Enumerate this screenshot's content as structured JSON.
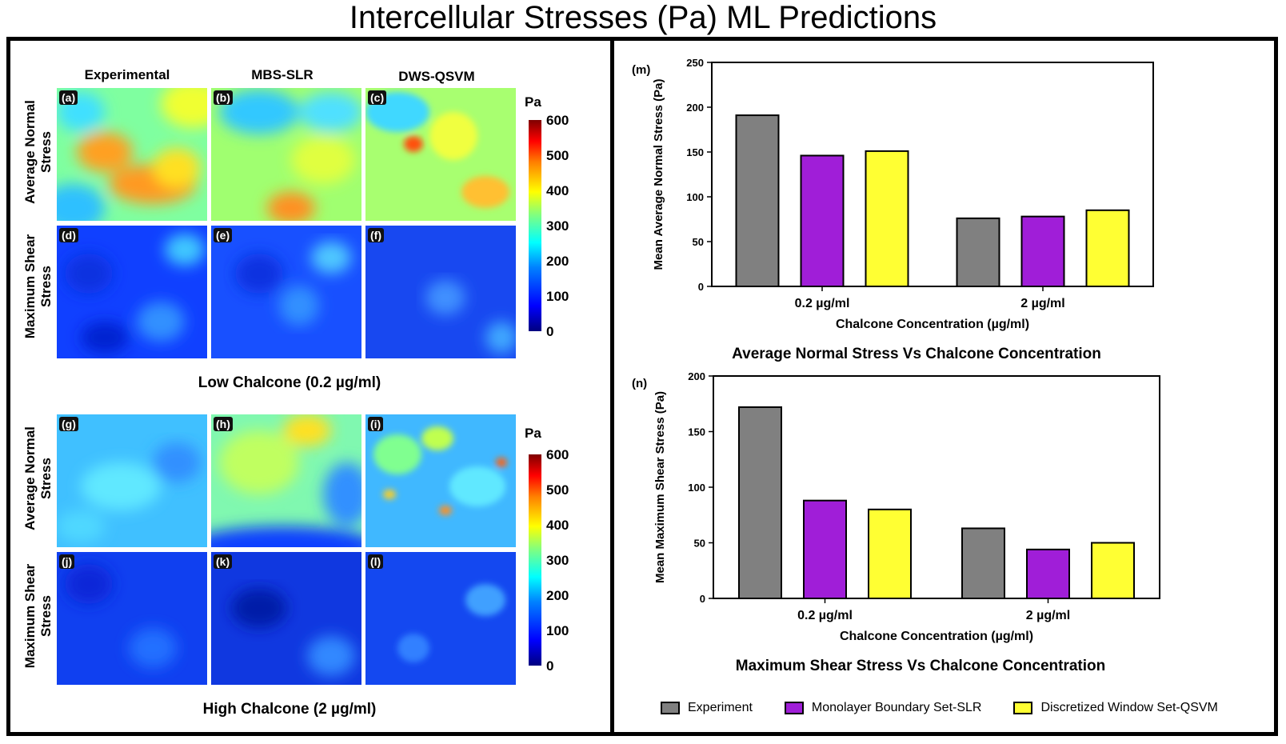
{
  "title": "Intercellular Stresses (Pa) ML Predictions",
  "left": {
    "columns": [
      "Experimental",
      "MBS-SLR",
      "DWS-QSVM"
    ],
    "rows": [
      "Average Normal Stress",
      "Maximum Shear Stress"
    ],
    "colorbar": {
      "unit": "Pa",
      "ticks": [
        "600",
        "500",
        "400",
        "300",
        "200",
        "100",
        "0"
      ]
    },
    "low": {
      "caption": "Low Chalcone (0.2 µg/ml)",
      "labels": [
        "(a)",
        "(b)",
        "(c)",
        "(d)",
        "(e)",
        "(f)"
      ]
    },
    "high": {
      "caption": "High Chalcone (2 µg/ml)",
      "labels": [
        "(g)",
        "(h)",
        "(i)",
        "(j)",
        "(k)",
        "(l)"
      ]
    }
  },
  "colors": {
    "experiment": "#808080",
    "mbs_slr": "#a01ed8",
    "dws_qsvm": "#ffff33"
  },
  "chart_data": [
    {
      "type": "bar",
      "panel_label": "(m)",
      "title": "Average Normal Stress Vs Chalcone Concentration",
      "xlabel": "Chalcone Concentration (µg/ml)",
      "ylabel": "Mean Average Normal Stress (Pa)",
      "ylim": [
        0,
        250
      ],
      "yticks": [
        0,
        50,
        100,
        150,
        200,
        250
      ],
      "categories": [
        "0.2 µg/ml",
        "2 µg/ml"
      ],
      "series": [
        {
          "name": "Experiment",
          "values": [
            191,
            76
          ]
        },
        {
          "name": "Monolayer Boundary Set-SLR",
          "values": [
            146,
            78
          ]
        },
        {
          "name": "Discretized Window Set-QSVM",
          "values": [
            151,
            85
          ]
        }
      ]
    },
    {
      "type": "bar",
      "panel_label": "(n)",
      "title": "Maximum Shear Stress Vs Chalcone Concentration",
      "xlabel": "Chalcone Concentration (µg/ml)",
      "ylabel": "Mean Maximum Shear  Stress (Pa)",
      "ylim": [
        0,
        200
      ],
      "yticks": [
        0,
        50,
        100,
        150,
        200
      ],
      "categories": [
        "0.2 µg/ml",
        "2 µg/ml"
      ],
      "series": [
        {
          "name": "Experiment",
          "values": [
            172,
            63
          ]
        },
        {
          "name": "Monolayer Boundary Set-SLR",
          "values": [
            88,
            44
          ]
        },
        {
          "name": "Discretized Window Set-QSVM",
          "values": [
            80,
            50
          ]
        }
      ]
    }
  ],
  "legend": [
    "Experiment",
    "Monolayer Boundary Set-SLR",
    "Discretized Window Set-QSVM"
  ]
}
